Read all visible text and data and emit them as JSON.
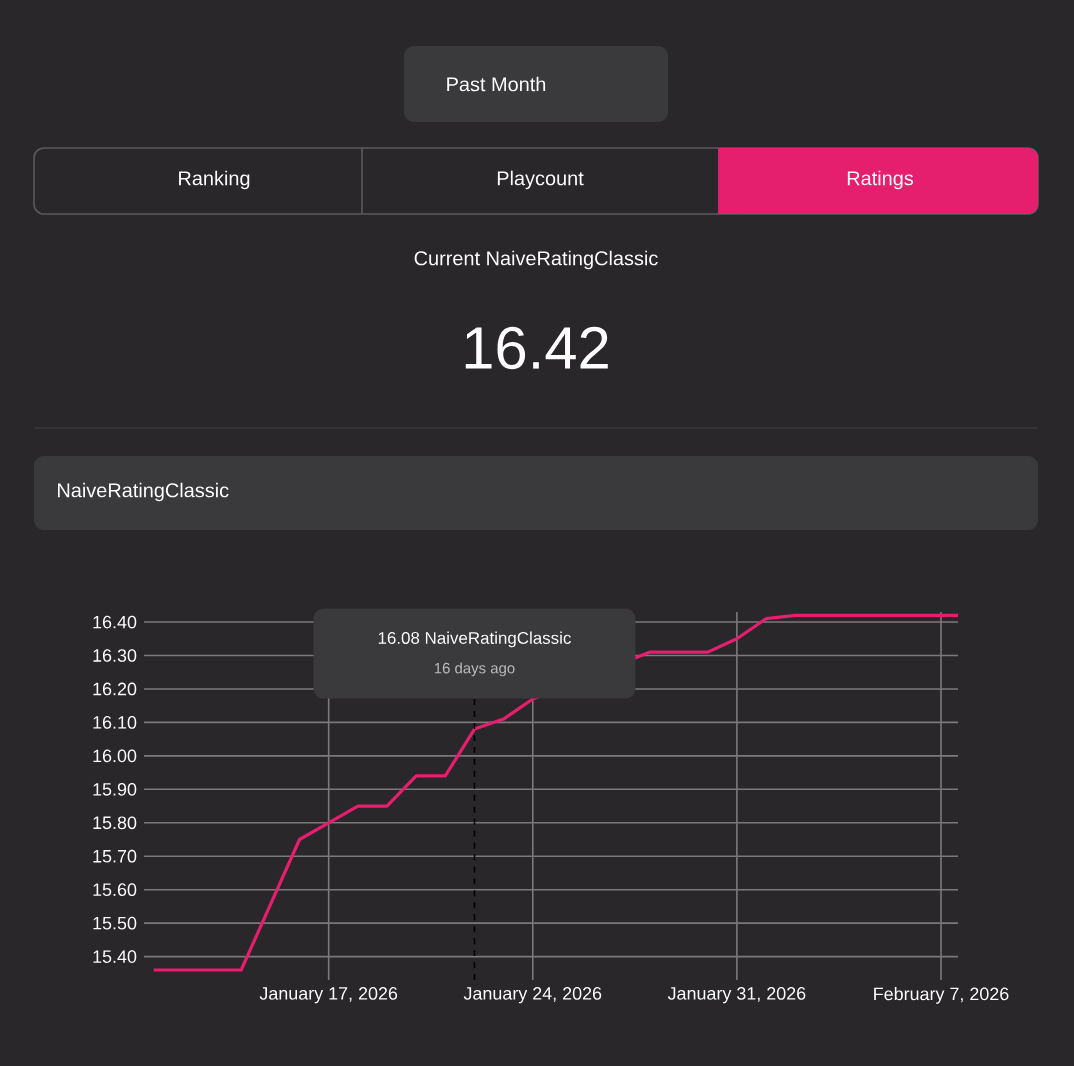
{
  "chart_data": {
    "type": "line",
    "x": [
      "2026-01-11",
      "2026-01-14",
      "2026-01-16",
      "2026-01-17",
      "2026-01-18",
      "2026-01-19",
      "2026-01-20",
      "2026-01-21",
      "2026-01-22",
      "2026-01-23",
      "2026-01-24",
      "2026-01-28",
      "2026-01-30",
      "2026-01-31",
      "2026-02-01",
      "2026-02-02",
      "2026-02-07T14:00"
    ],
    "series": [
      {
        "color": "#e61e6e",
        "values": [
          15.36,
          15.36,
          15.75,
          15.8,
          15.85,
          15.85,
          15.94,
          15.94,
          16.08,
          16.11,
          16.17,
          16.31,
          16.31,
          16.35,
          16.41,
          16.42,
          16.42
        ]
      }
    ],
    "xlim": [
      "2026-01-10T16:00",
      "2026-02-07T14:00"
    ],
    "ylim": [
      15.33,
      16.43
    ],
    "xticks": [
      {
        "value": "2026-01-17",
        "label": "January 17, 2026"
      },
      {
        "value": "2026-01-24",
        "label": "January 24, 2026"
      },
      {
        "value": "2026-01-31",
        "label": "January 31, 2026"
      },
      {
        "value": "2026-02-07",
        "label": "February 7, 2026"
      }
    ],
    "yticks": [
      {
        "value": 15.4,
        "label": "15.40"
      },
      {
        "value": 15.5,
        "label": "15.50"
      },
      {
        "value": 15.6,
        "label": "15.60"
      },
      {
        "value": 15.7,
        "label": "15.70"
      },
      {
        "value": 15.8,
        "label": "15.80"
      },
      {
        "value": 15.9,
        "label": "15.90"
      },
      {
        "value": 16.0,
        "label": "16.00"
      },
      {
        "value": 16.1,
        "label": "16.10"
      },
      {
        "value": 16.2,
        "label": "16.20"
      },
      {
        "value": 16.3,
        "label": "16.30"
      },
      {
        "value": 16.4,
        "label": "16.40"
      }
    ],
    "grid": true,
    "marker": "none",
    "line_style": "solid",
    "ref_lines": [
      {
        "axis": "x",
        "value": "2026-01-22",
        "label": null,
        "color": "#000000",
        "line_style": "dashed"
      }
    ],
    "annotations": [
      "16.08 NaiveRatingClassic",
      "16 days ago",
      "Past Month",
      "Ranking",
      "Playcount",
      "Ratings",
      "Current NaiveRatingClassic",
      "16.42",
      "NaiveRatingClassic"
    ]
  }
}
